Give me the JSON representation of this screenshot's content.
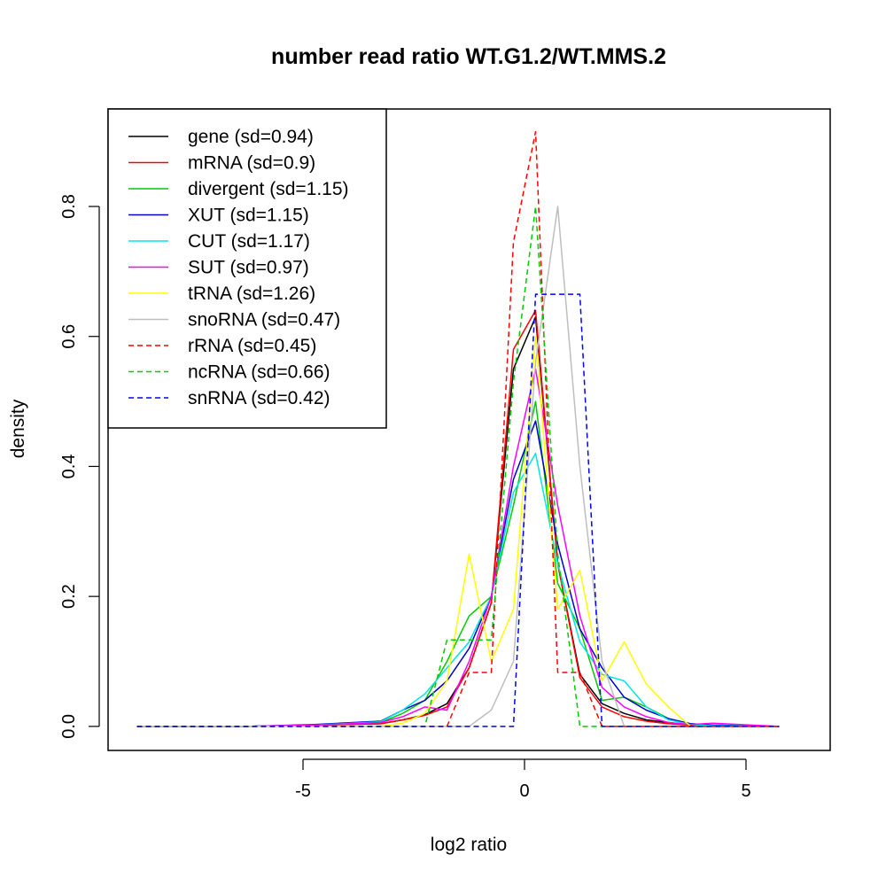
{
  "chart_data": {
    "type": "line",
    "title": "number read ratio WT.G1.2/WT.MMS.2",
    "xlabel": "log2 ratio",
    "ylabel": "density",
    "xlim": [
      -9.4,
      6.9
    ],
    "ylim": [
      -0.037,
      0.95
    ],
    "xticks": [
      -5,
      0,
      5
    ],
    "xtick_labels": [
      "-5",
      "0",
      "5"
    ],
    "yticks": [
      0.0,
      0.2,
      0.4,
      0.6,
      0.8
    ],
    "ytick_labels": [
      "0.0",
      "0.2",
      "0.4",
      "0.6",
      "0.8"
    ],
    "grid": false,
    "legend_position": "top-left",
    "series": [
      {
        "name": "gene (sd=0.94)",
        "color": "#000000",
        "dash": "solid",
        "x": [
          -8.75,
          -6.25,
          -4.75,
          -3.25,
          -2.75,
          -2.25,
          -1.75,
          -1.25,
          -0.75,
          -0.25,
          0.25,
          0.75,
          1.25,
          1.75,
          2.25,
          2.75,
          3.25,
          3.75,
          4.25,
          5.75
        ],
        "y": [
          0.0,
          0.0,
          0.002,
          0.004,
          0.01,
          0.018,
          0.035,
          0.09,
          0.19,
          0.55,
          0.63,
          0.25,
          0.08,
          0.035,
          0.02,
          0.01,
          0.006,
          0.002,
          0.001,
          0.0
        ]
      },
      {
        "name": "mRNA (sd=0.9)",
        "color": "#ff0000",
        "dash": "solid",
        "x": [
          -8.75,
          -6.25,
          -4.75,
          -3.25,
          -2.75,
          -2.25,
          -1.75,
          -1.25,
          -0.75,
          -0.25,
          0.25,
          0.75,
          1.25,
          1.75,
          2.25,
          2.75,
          3.25,
          3.75,
          4.25,
          5.75
        ],
        "y": [
          0.0,
          0.0,
          0.002,
          0.004,
          0.01,
          0.017,
          0.03,
          0.09,
          0.19,
          0.58,
          0.64,
          0.25,
          0.075,
          0.03,
          0.015,
          0.008,
          0.004,
          0.002,
          0.001,
          0.0
        ]
      },
      {
        "name": "divergent (sd=1.15)",
        "color": "#00cc00",
        "dash": "solid",
        "x": [
          -8.75,
          -6.25,
          -4.75,
          -3.25,
          -2.75,
          -2.25,
          -1.75,
          -1.25,
          -0.75,
          -0.25,
          0.25,
          0.75,
          1.25,
          1.75,
          2.25,
          2.75,
          3.25,
          3.75,
          4.25,
          5.75
        ],
        "y": [
          0.0,
          0.0,
          0.002,
          0.006,
          0.02,
          0.04,
          0.1,
          0.17,
          0.2,
          0.34,
          0.5,
          0.22,
          0.15,
          0.04,
          0.045,
          0.03,
          0.012,
          0.004,
          0.002,
          0.0
        ]
      },
      {
        "name": "XUT (sd=1.15)",
        "color": "#0000cc",
        "dash": "solid",
        "x": [
          -8.75,
          -6.25,
          -4.75,
          -3.25,
          -2.75,
          -2.25,
          -1.75,
          -1.25,
          -0.75,
          -0.25,
          0.25,
          0.75,
          1.25,
          1.75,
          2.25,
          2.75,
          3.25,
          3.75,
          4.25,
          5.75
        ],
        "y": [
          0.0,
          0.0,
          0.003,
          0.008,
          0.025,
          0.04,
          0.07,
          0.12,
          0.2,
          0.38,
          0.47,
          0.28,
          0.15,
          0.09,
          0.045,
          0.025,
          0.012,
          0.004,
          0.002,
          0.0
        ]
      },
      {
        "name": "CUT (sd=1.17)",
        "color": "#00e5e5",
        "dash": "solid",
        "x": [
          -8.75,
          -6.25,
          -4.75,
          -3.25,
          -2.75,
          -2.25,
          -1.75,
          -1.25,
          -0.75,
          -0.25,
          0.25,
          0.75,
          1.25,
          1.75,
          2.25,
          2.75,
          3.25,
          3.75,
          4.25,
          5.75
        ],
        "y": [
          0.0,
          0.0,
          0.002,
          0.007,
          0.025,
          0.05,
          0.09,
          0.13,
          0.2,
          0.36,
          0.42,
          0.25,
          0.13,
          0.08,
          0.07,
          0.03,
          0.01,
          0.003,
          0.001,
          0.0
        ]
      },
      {
        "name": "SUT (sd=0.97)",
        "color": "#ff00ff",
        "dash": "solid",
        "x": [
          -8.75,
          -6.25,
          -4.75,
          -3.25,
          -2.75,
          -2.25,
          -1.75,
          -1.25,
          -0.75,
          -0.25,
          0.25,
          0.75,
          1.25,
          1.75,
          2.25,
          2.75,
          3.25,
          3.75,
          4.25,
          5.75
        ],
        "y": [
          0.0,
          0.0,
          0.002,
          0.006,
          0.015,
          0.03,
          0.025,
          0.1,
          0.2,
          0.4,
          0.55,
          0.34,
          0.17,
          0.06,
          0.03,
          0.015,
          0.006,
          0.003,
          0.005,
          0.0
        ]
      },
      {
        "name": "tRNA (sd=1.26)",
        "color": "#ffff00",
        "dash": "solid",
        "x": [
          -8.75,
          -5.25,
          -3.25,
          -2.75,
          -2.25,
          -1.75,
          -1.25,
          -0.75,
          -0.25,
          0.25,
          0.75,
          1.25,
          1.75,
          2.25,
          2.75,
          3.25,
          3.75,
          4.25,
          5.75
        ],
        "y": [
          0.0,
          0.0,
          0.0,
          0.005,
          0.02,
          0.07,
          0.265,
          0.1,
          0.18,
          0.6,
          0.18,
          0.24,
          0.07,
          0.13,
          0.065,
          0.03,
          0.0,
          0.0,
          0.0
        ]
      },
      {
        "name": "snoRNA (sd=0.47)",
        "color": "#bebebe",
        "dash": "solid",
        "x": [
          -8.75,
          -1.75,
          -1.25,
          -0.75,
          -0.25,
          0.25,
          0.75,
          1.25,
          1.75,
          2.25,
          5.75
        ],
        "y": [
          0.0,
          0.0,
          0.0,
          0.025,
          0.1,
          0.56,
          0.8,
          0.4,
          0.1,
          0.0,
          0.0
        ]
      },
      {
        "name": "rRNA (sd=0.45)",
        "color": "#ff0000",
        "dash": "dashed",
        "x": [
          -8.75,
          -1.75,
          -1.25,
          -0.75,
          -0.25,
          0.25,
          0.75,
          1.25,
          1.75,
          2.25,
          5.75
        ],
        "y": [
          0.0,
          0.0,
          0.083,
          0.083,
          0.745,
          0.915,
          0.083,
          0.083,
          0.0,
          0.0,
          0.0
        ]
      },
      {
        "name": "ncRNA (sd=0.66)",
        "color": "#00cc00",
        "dash": "dashed",
        "x": [
          -8.75,
          -2.25,
          -1.75,
          -1.25,
          -0.75,
          -0.25,
          0.25,
          0.75,
          1.25,
          1.75,
          5.75
        ],
        "y": [
          0.0,
          0.0,
          0.133,
          0.133,
          0.133,
          0.53,
          0.8,
          0.265,
          0.0,
          0.0,
          0.0
        ]
      },
      {
        "name": "snRNA (sd=0.42)",
        "color": "#0000ff",
        "dash": "dashed",
        "x": [
          -8.75,
          -0.25,
          0.25,
          0.75,
          1.25,
          1.75,
          5.75
        ],
        "y": [
          0.0,
          0.0,
          0.665,
          0.665,
          0.665,
          0.0,
          0.0
        ]
      }
    ]
  }
}
